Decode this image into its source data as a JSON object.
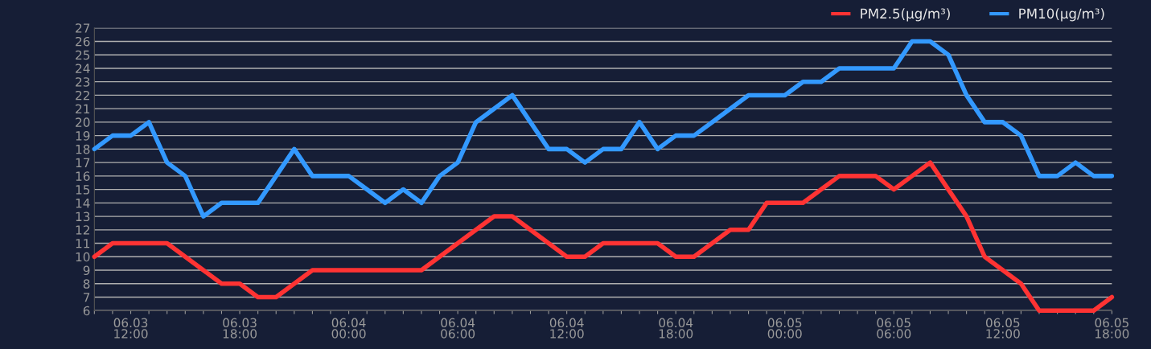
{
  "chart_data": {
    "type": "line",
    "categories": [
      null,
      null,
      "06.03\n12:00",
      null,
      null,
      null,
      null,
      null,
      "06.03\n18:00",
      null,
      null,
      null,
      null,
      null,
      "06.04\n00:00",
      null,
      null,
      null,
      null,
      null,
      "06.04\n06:00",
      null,
      null,
      null,
      null,
      null,
      "06.04\n12:00",
      null,
      null,
      null,
      null,
      null,
      "06.04\n18:00",
      null,
      null,
      null,
      null,
      null,
      "06.05\n00:00",
      null,
      null,
      null,
      null,
      null,
      "06.05\n06:00",
      null,
      null,
      null,
      null,
      null,
      "06.05\n12:00",
      null,
      null,
      null,
      null,
      null,
      "06.05\n18:00"
    ],
    "series": [
      {
        "name": "PM2.5(μg/m³)",
        "color": "#ff3333",
        "values": [
          10,
          11,
          11,
          11,
          11,
          10,
          9,
          8,
          8,
          7,
          7,
          8,
          9,
          9,
          9,
          9,
          9,
          9,
          9,
          10,
          11,
          12,
          13,
          13,
          12,
          11,
          10,
          10,
          11,
          11,
          11,
          11,
          10,
          10,
          11,
          12,
          12,
          14,
          14,
          14,
          15,
          16,
          16,
          16,
          15,
          16,
          17,
          15,
          13,
          10,
          9,
          8,
          6,
          6,
          6,
          6,
          7
        ]
      },
      {
        "name": "PM10(μg/m³)",
        "color": "#3399ff",
        "values": [
          18,
          19,
          19,
          20,
          17,
          16,
          13,
          14,
          14,
          14,
          16,
          18,
          16,
          16,
          16,
          15,
          14,
          15,
          14,
          16,
          17,
          20,
          21,
          22,
          20,
          18,
          18,
          17,
          18,
          18,
          20,
          18,
          19,
          19,
          20,
          21,
          22,
          22,
          22,
          23,
          23,
          24,
          24,
          24,
          24,
          26,
          26,
          25,
          22,
          20,
          20,
          19,
          16,
          16,
          17,
          16,
          16
        ]
      }
    ],
    "ylim": [
      6,
      27
    ],
    "yticks": [
      6,
      7,
      8,
      9,
      10,
      11,
      12,
      13,
      14,
      15,
      16,
      17,
      18,
      19,
      20,
      21,
      22,
      23,
      24,
      25,
      26,
      27
    ],
    "grid": "y",
    "legend": "top right",
    "marker": "none",
    "line_style": "solid"
  }
}
